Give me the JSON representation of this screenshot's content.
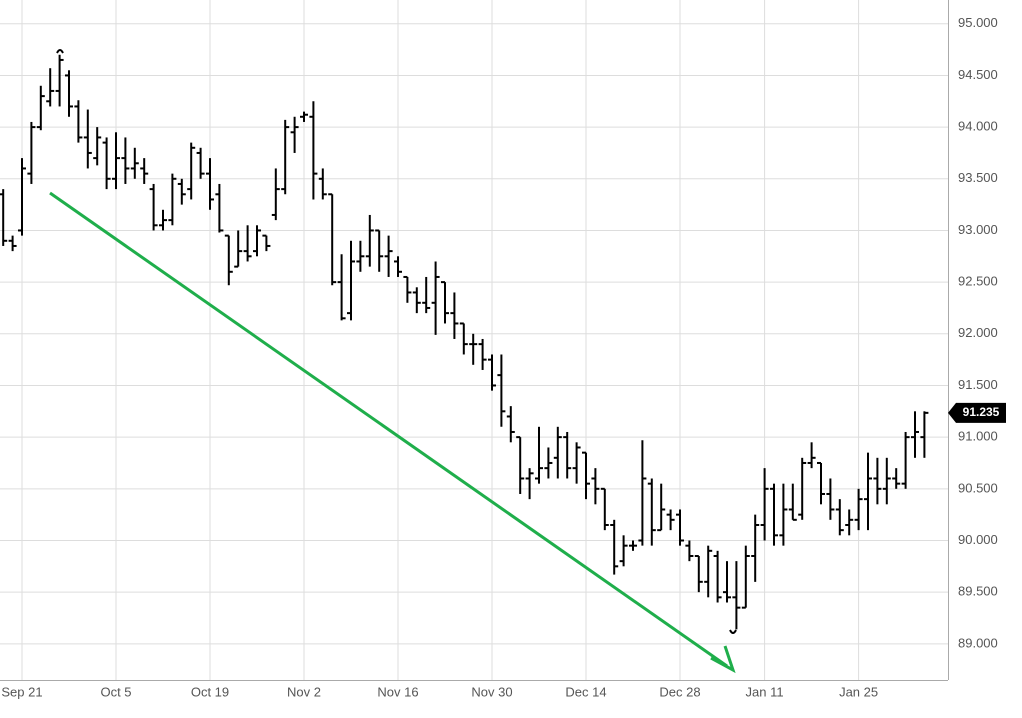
{
  "chart_data": {
    "type": "ohlc",
    "categories": [
      null,
      null,
      "Sep 21",
      null,
      null,
      null,
      null,
      null,
      null,
      null,
      null,
      null,
      "Oct 5",
      null,
      null,
      null,
      null,
      null,
      null,
      null,
      null,
      null,
      "Oct 19",
      null,
      null,
      null,
      null,
      null,
      null,
      null,
      null,
      null,
      "Nov 2",
      null,
      null,
      null,
      null,
      null,
      null,
      null,
      null,
      null,
      "Nov 16",
      null,
      null,
      null,
      null,
      null,
      null,
      null,
      null,
      null,
      "Nov 30",
      null,
      null,
      null,
      null,
      null,
      null,
      null,
      null,
      null,
      "Dec 14",
      null,
      null,
      null,
      null,
      null,
      null,
      null,
      null,
      null,
      "Dec 28",
      null,
      null,
      null,
      null,
      null,
      null,
      null,
      null,
      "Jan 11",
      null,
      null,
      null,
      null,
      null,
      null,
      null,
      null,
      null,
      "Jan 25",
      null,
      null,
      null,
      null,
      null,
      null,
      null
    ],
    "open": [
      93.35,
      92.9,
      93.0,
      93.55,
      94.0,
      94.25,
      94.35,
      94.5,
      94.2,
      93.9,
      93.7,
      93.85,
      93.5,
      93.7,
      93.6,
      93.6,
      93.4,
      93.05,
      93.1,
      93.45,
      93.4,
      93.75,
      93.55,
      93.35,
      92.95,
      92.65,
      92.8,
      92.8,
      92.95,
      93.15,
      93.4,
      93.95,
      94.1,
      94.1,
      93.5,
      93.35,
      92.5,
      92.2,
      92.7,
      92.75,
      93.0,
      92.75,
      92.7,
      92.55,
      92.4,
      92.3,
      92.3,
      92.5,
      92.2,
      92.1,
      91.9,
      91.9,
      91.75,
      91.6,
      91.2,
      91.0,
      90.6,
      90.6,
      90.7,
      90.8,
      91.0,
      90.7,
      90.85,
      90.6,
      90.5,
      90.15,
      89.8,
      89.95,
      90.0,
      90.55,
      90.1,
      90.25,
      90.25,
      89.95,
      89.85,
      89.6,
      89.85,
      89.5,
      89.45,
      89.35,
      89.85,
      90.15,
      90.5,
      90.05,
      90.3,
      90.25,
      90.75,
      90.75,
      90.45,
      90.3,
      90.15,
      90.2,
      90.4,
      90.6,
      90.5,
      90.6,
      90.55,
      91.0,
      91.0
    ],
    "high": [
      93.4,
      92.95,
      93.7,
      94.05,
      94.4,
      94.57,
      94.7,
      94.55,
      94.26,
      94.17,
      94.0,
      93.9,
      93.95,
      93.9,
      93.8,
      93.7,
      93.45,
      93.2,
      93.55,
      93.5,
      93.85,
      93.8,
      93.7,
      93.45,
      92.95,
      93.0,
      93.05,
      93.05,
      92.95,
      93.6,
      94.07,
      94.1,
      94.15,
      94.25,
      93.6,
      93.35,
      92.77,
      92.9,
      92.9,
      93.15,
      93.0,
      92.95,
      92.75,
      92.55,
      92.45,
      92.55,
      92.7,
      92.5,
      92.4,
      92.1,
      92.0,
      91.95,
      91.8,
      91.8,
      91.3,
      91.0,
      90.7,
      91.1,
      90.9,
      91.1,
      91.05,
      90.95,
      90.85,
      90.7,
      90.5,
      90.2,
      90.05,
      90.0,
      90.97,
      90.6,
      90.55,
      90.3,
      90.3,
      90.0,
      89.85,
      89.95,
      89.9,
      89.8,
      89.8,
      89.95,
      90.25,
      90.7,
      90.55,
      90.55,
      90.55,
      90.8,
      90.95,
      90.75,
      90.6,
      90.4,
      90.3,
      90.5,
      90.85,
      90.8,
      90.8,
      90.7,
      91.05,
      91.25,
      91.25
    ],
    "low": [
      92.85,
      92.8,
      92.95,
      93.45,
      93.97,
      94.2,
      94.2,
      94.1,
      93.85,
      93.6,
      93.63,
      93.4,
      93.4,
      93.45,
      93.5,
      93.45,
      93.0,
      93.0,
      93.05,
      93.25,
      93.3,
      93.5,
      93.2,
      92.98,
      92.47,
      92.65,
      92.7,
      92.75,
      92.8,
      93.1,
      93.35,
      93.75,
      94.05,
      93.3,
      93.3,
      92.47,
      92.13,
      92.13,
      92.6,
      92.65,
      92.6,
      92.55,
      92.55,
      92.3,
      92.2,
      92.2,
      91.99,
      92.1,
      91.95,
      91.8,
      91.7,
      91.65,
      91.45,
      91.1,
      90.95,
      90.45,
      90.4,
      90.55,
      90.6,
      90.6,
      90.6,
      90.55,
      90.4,
      90.35,
      90.1,
      89.67,
      89.75,
      89.9,
      89.95,
      89.95,
      90.1,
      90.1,
      89.95,
      89.8,
      89.5,
      89.45,
      89.4,
      89.4,
      89.14,
      89.35,
      89.6,
      90.0,
      89.95,
      89.95,
      90.2,
      90.2,
      90.7,
      90.35,
      90.2,
      90.05,
      90.05,
      90.1,
      90.1,
      90.35,
      90.35,
      90.5,
      90.5,
      90.8,
      90.8
    ],
    "close": [
      92.9,
      92.85,
      93.6,
      94.0,
      94.3,
      94.35,
      94.65,
      94.2,
      93.9,
      93.75,
      93.9,
      93.5,
      93.7,
      93.6,
      93.65,
      93.55,
      93.05,
      93.1,
      93.5,
      93.35,
      93.8,
      93.55,
      93.3,
      93.0,
      92.6,
      92.8,
      92.75,
      93.0,
      92.85,
      93.4,
      94.0,
      94.0,
      94.12,
      93.55,
      93.35,
      92.5,
      92.15,
      92.7,
      92.75,
      93.0,
      92.75,
      92.8,
      92.6,
      92.4,
      92.3,
      92.25,
      92.55,
      92.2,
      92.1,
      91.9,
      91.9,
      91.75,
      91.5,
      91.25,
      91.05,
      90.6,
      90.65,
      90.7,
      90.75,
      91.0,
      90.7,
      90.9,
      90.55,
      90.5,
      90.15,
      89.75,
      89.95,
      89.95,
      90.6,
      90.1,
      90.3,
      90.2,
      90.0,
      89.85,
      89.6,
      89.9,
      89.45,
      89.45,
      89.35,
      89.85,
      90.15,
      90.5,
      90.05,
      90.3,
      90.2,
      90.75,
      90.8,
      90.45,
      90.3,
      90.1,
      90.2,
      90.4,
      90.6,
      90.5,
      90.6,
      90.55,
      91.0,
      91.05,
      91.235
    ],
    "color": "#000000",
    "last_price": 91.235,
    "ylim": [
      88.65,
      95.23
    ],
    "yticks": [
      {
        "value": 89,
        "label": "89.000"
      },
      {
        "value": 89.5,
        "label": "89.500"
      },
      {
        "value": 90,
        "label": "90.000"
      },
      {
        "value": 90.5,
        "label": "90.500"
      },
      {
        "value": 91,
        "label": "91.000"
      },
      {
        "value": 91.5,
        "label": "91.500"
      },
      {
        "value": 92,
        "label": "92.000"
      },
      {
        "value": 92.5,
        "label": "92.500"
      },
      {
        "value": 93,
        "label": "93.000"
      },
      {
        "value": 93.5,
        "label": "93.500"
      },
      {
        "value": 94,
        "label": "94.000"
      },
      {
        "value": 94.5,
        "label": "94.500"
      },
      {
        "value": 95,
        "label": "95.000"
      }
    ],
    "grid": true
  }
}
